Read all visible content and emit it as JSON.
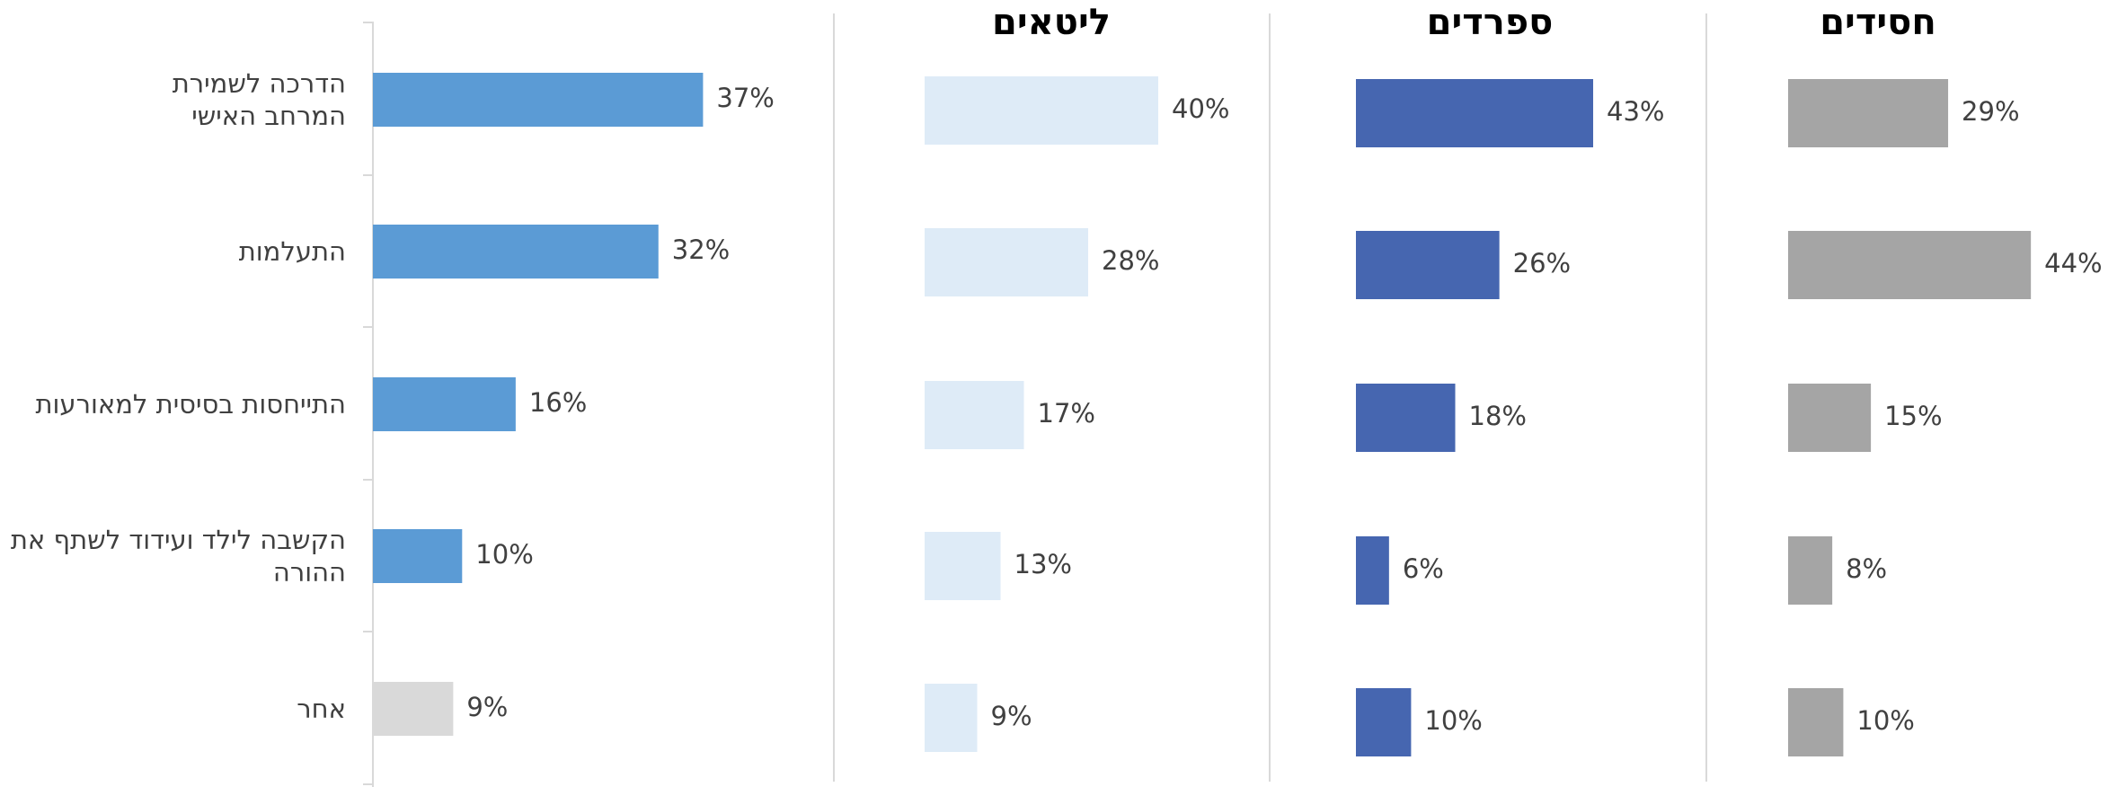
{
  "chart_data": [
    {
      "type": "bar",
      "orientation": "horizontal",
      "categories": [
        "הדרכה לשמירת\nהמרחב האישי",
        "התעלמות",
        "התייחסות בסיסית למאורעות",
        "הקשבה לילד ועידוד לשתף את\nההורה",
        "אחר"
      ],
      "values": [
        37,
        32,
        16,
        10,
        9
      ],
      "value_labels": [
        "37%",
        "32%",
        "16%",
        "10%",
        "9%"
      ],
      "colors": [
        "#5b9bd5",
        "#5b9bd5",
        "#5b9bd5",
        "#5b9bd5",
        "#d9d9d9"
      ]
    },
    {
      "type": "bar",
      "orientation": "horizontal",
      "title": "ליטאים",
      "values": [
        40,
        28,
        17,
        13,
        9
      ],
      "value_labels": [
        "40%",
        "28%",
        "17%",
        "13%",
        "9%"
      ],
      "color": "#deebf7"
    },
    {
      "type": "bar",
      "orientation": "horizontal",
      "title": "ספרדים",
      "values": [
        43,
        26,
        18,
        6,
        10
      ],
      "value_labels": [
        "43%",
        "26%",
        "18%",
        "6%",
        "10%"
      ],
      "color": "#4666b0"
    },
    {
      "type": "bar",
      "orientation": "horizontal",
      "title": "חסידים",
      "values": [
        29,
        44,
        15,
        8,
        10
      ],
      "value_labels": [
        "29%",
        "44%",
        "15%",
        "8%",
        "10%"
      ],
      "color": "#a5a5a5"
    }
  ]
}
